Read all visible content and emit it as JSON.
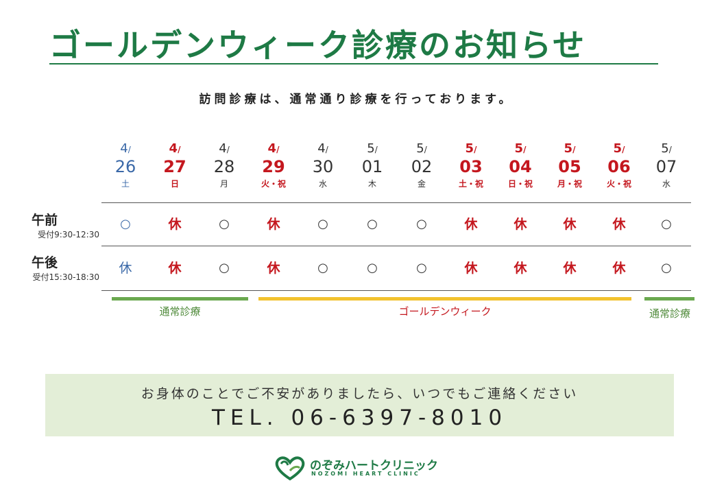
{
  "title": "ゴールデンウィーク診療のお知らせ",
  "subtitle": "訪問診療は、通常通り診療を行っております。",
  "days": [
    {
      "month": "4",
      "day": "26",
      "weekday": "土"
    },
    {
      "month": "4",
      "day": "27",
      "weekday": "日"
    },
    {
      "month": "4",
      "day": "28",
      "weekday": "月"
    },
    {
      "month": "4",
      "day": "29",
      "weekday": "火・祝"
    },
    {
      "month": "4",
      "day": "30",
      "weekday": "水"
    },
    {
      "month": "5",
      "day": "01",
      "weekday": "木"
    },
    {
      "month": "5",
      "day": "02",
      "weekday": "金"
    },
    {
      "month": "5",
      "day": "03",
      "weekday": "土・祝"
    },
    {
      "month": "5",
      "day": "04",
      "weekday": "日・祝"
    },
    {
      "month": "5",
      "day": "05",
      "weekday": "月・祝"
    },
    {
      "month": "5",
      "day": "06",
      "weekday": "火・祝"
    },
    {
      "month": "5",
      "day": "07",
      "weekday": "水"
    }
  ],
  "rows": [
    {
      "label": "午前",
      "hours": "受付9:30-12:30",
      "cells": [
        "○",
        "休",
        "○",
        "休",
        "○",
        "○",
        "○",
        "休",
        "休",
        "休",
        "休",
        "○"
      ]
    },
    {
      "label": "午後",
      "hours": "受付15:30-18:30",
      "cells": [
        "休",
        "休",
        "○",
        "休",
        "○",
        "○",
        "○",
        "休",
        "休",
        "休",
        "休",
        "○"
      ]
    }
  ],
  "periods": [
    {
      "label": "通常診療",
      "color": "#6aa84f"
    },
    {
      "label": "ゴールデンウィーク",
      "color": "#f2c22e"
    },
    {
      "label": "通常診療",
      "color": "#6aa84f"
    }
  ],
  "contact": {
    "message": "お身体のことでご不安がありましたら、いつでもご連絡ください",
    "tel": "TEL. 06-6397-8010"
  },
  "clinic": {
    "name": "のぞみハートクリニック",
    "name_en": "NOZOMI HEART CLINIC"
  },
  "colors": {
    "brand": "#1e7a45",
    "holiday": "#c4171e",
    "saturday": "#3b69a8",
    "contact_bg": "#e3eed7"
  }
}
